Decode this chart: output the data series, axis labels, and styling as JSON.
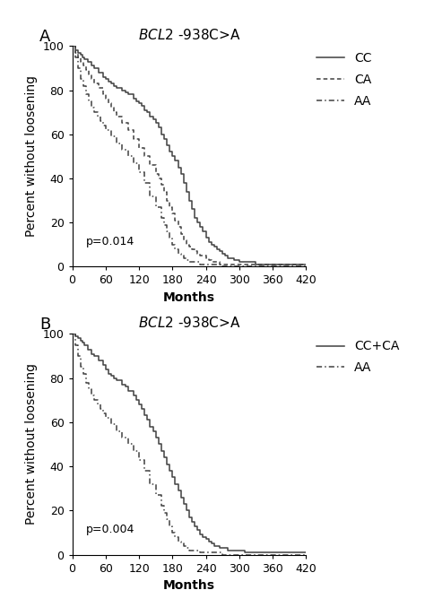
{
  "title": "BCL2 -938C>A",
  "ylabel": "Percent without loosening",
  "xlabel": "Months",
  "xlim": [
    0,
    420
  ],
  "ylim": [
    0,
    100
  ],
  "xticks": [
    0,
    60,
    120,
    180,
    240,
    300,
    360,
    420
  ],
  "yticks": [
    0,
    20,
    40,
    60,
    80,
    100
  ],
  "panel_A_pvalue": "p=0.014",
  "panel_B_pvalue": "p=0.004",
  "panel_A_label": "A",
  "panel_B_label": "B",
  "CC_x": [
    0,
    5,
    10,
    15,
    18,
    22,
    28,
    35,
    40,
    48,
    55,
    60,
    65,
    70,
    75,
    80,
    90,
    95,
    100,
    110,
    115,
    120,
    125,
    130,
    135,
    140,
    145,
    150,
    155,
    160,
    165,
    170,
    175,
    180,
    185,
    190,
    195,
    200,
    205,
    210,
    215,
    220,
    225,
    230,
    235,
    240,
    245,
    250,
    255,
    260,
    265,
    270,
    275,
    280,
    290,
    300,
    310,
    320,
    330,
    350,
    370,
    390,
    410,
    420
  ],
  "CC_y": [
    100,
    98,
    97,
    96,
    95,
    94,
    93,
    91,
    90,
    88,
    86,
    85,
    84,
    83,
    82,
    81,
    80,
    79,
    78,
    76,
    75,
    74,
    73,
    71,
    70,
    68,
    67,
    65,
    63,
    60,
    58,
    55,
    52,
    50,
    48,
    45,
    42,
    38,
    34,
    30,
    26,
    22,
    20,
    18,
    16,
    13,
    11,
    10,
    9,
    8,
    7,
    6,
    5,
    4,
    3,
    2,
    2,
    2,
    1,
    1,
    1,
    1,
    1,
    1
  ],
  "CA_x": [
    0,
    5,
    10,
    15,
    20,
    25,
    30,
    35,
    40,
    48,
    55,
    60,
    65,
    70,
    75,
    80,
    90,
    100,
    110,
    120,
    130,
    140,
    150,
    155,
    160,
    165,
    170,
    175,
    180,
    185,
    190,
    195,
    200,
    205,
    210,
    215,
    220,
    225,
    230,
    235,
    240,
    245,
    250,
    255,
    260,
    265,
    270,
    280,
    290,
    300,
    310,
    320,
    350,
    380,
    410,
    420
  ],
  "CA_y": [
    100,
    97,
    95,
    93,
    91,
    89,
    87,
    85,
    83,
    81,
    78,
    76,
    74,
    72,
    70,
    68,
    65,
    62,
    58,
    54,
    50,
    46,
    42,
    40,
    37,
    34,
    30,
    27,
    24,
    21,
    18,
    15,
    12,
    10,
    9,
    8,
    7,
    6,
    5,
    5,
    4,
    3,
    2,
    2,
    2,
    1,
    1,
    1,
    1,
    1,
    1,
    1,
    1,
    1,
    1,
    1
  ],
  "AA_x": [
    0,
    5,
    10,
    15,
    20,
    25,
    30,
    35,
    40,
    45,
    50,
    55,
    60,
    70,
    80,
    90,
    100,
    110,
    120,
    130,
    140,
    150,
    160,
    165,
    170,
    175,
    180,
    185,
    190,
    195,
    200,
    205,
    210,
    220,
    230,
    240,
    250,
    260,
    270,
    280,
    290,
    300,
    320,
    350,
    380,
    410,
    420
  ],
  "AA_y": [
    100,
    95,
    90,
    85,
    82,
    78,
    75,
    72,
    70,
    68,
    66,
    64,
    62,
    59,
    56,
    53,
    50,
    47,
    43,
    38,
    32,
    27,
    22,
    19,
    16,
    13,
    10,
    8,
    6,
    5,
    4,
    3,
    2,
    2,
    1,
    1,
    1,
    1,
    0,
    0,
    0,
    0,
    0,
    0,
    0,
    0,
    0
  ],
  "CCCA_x": [
    0,
    5,
    10,
    15,
    18,
    22,
    28,
    35,
    40,
    48,
    55,
    60,
    65,
    70,
    75,
    80,
    90,
    95,
    100,
    110,
    115,
    120,
    125,
    130,
    135,
    140,
    145,
    150,
    155,
    160,
    165,
    170,
    175,
    180,
    185,
    190,
    195,
    200,
    205,
    210,
    215,
    220,
    225,
    230,
    235,
    240,
    245,
    250,
    255,
    260,
    265,
    270,
    280,
    290,
    300,
    310,
    320,
    330,
    340,
    350,
    360,
    380,
    400,
    420
  ],
  "CCCA_y": [
    100,
    99,
    98,
    97,
    96,
    95,
    93,
    91,
    90,
    88,
    86,
    84,
    82,
    81,
    80,
    79,
    77,
    76,
    74,
    72,
    70,
    68,
    66,
    63,
    61,
    58,
    56,
    53,
    50,
    47,
    44,
    41,
    38,
    35,
    32,
    29,
    26,
    23,
    20,
    17,
    15,
    13,
    11,
    9,
    8,
    7,
    6,
    5,
    4,
    4,
    3,
    3,
    2,
    2,
    2,
    1,
    1,
    1,
    1,
    1,
    1,
    1,
    1,
    1
  ],
  "AA2_x": [
    0,
    5,
    10,
    15,
    20,
    25,
    30,
    35,
    40,
    45,
    50,
    55,
    60,
    70,
    80,
    90,
    100,
    110,
    120,
    130,
    140,
    150,
    160,
    165,
    170,
    175,
    180,
    185,
    190,
    195,
    200,
    205,
    210,
    220,
    230,
    240,
    250,
    260,
    270,
    280,
    290,
    300,
    320,
    350,
    380,
    410,
    420
  ],
  "AA2_y": [
    100,
    95,
    90,
    85,
    82,
    78,
    75,
    72,
    70,
    68,
    66,
    64,
    62,
    59,
    56,
    53,
    50,
    47,
    43,
    38,
    32,
    27,
    22,
    19,
    16,
    13,
    10,
    8,
    6,
    5,
    4,
    3,
    2,
    2,
    1,
    1,
    1,
    1,
    0,
    0,
    0,
    0,
    0,
    0,
    0,
    0,
    0
  ],
  "color": "#404040",
  "fontsize_title": 11,
  "fontsize_label": 10,
  "fontsize_tick": 9,
  "fontsize_legend": 10,
  "fontsize_pvalue": 9,
  "fontsize_panel": 13
}
